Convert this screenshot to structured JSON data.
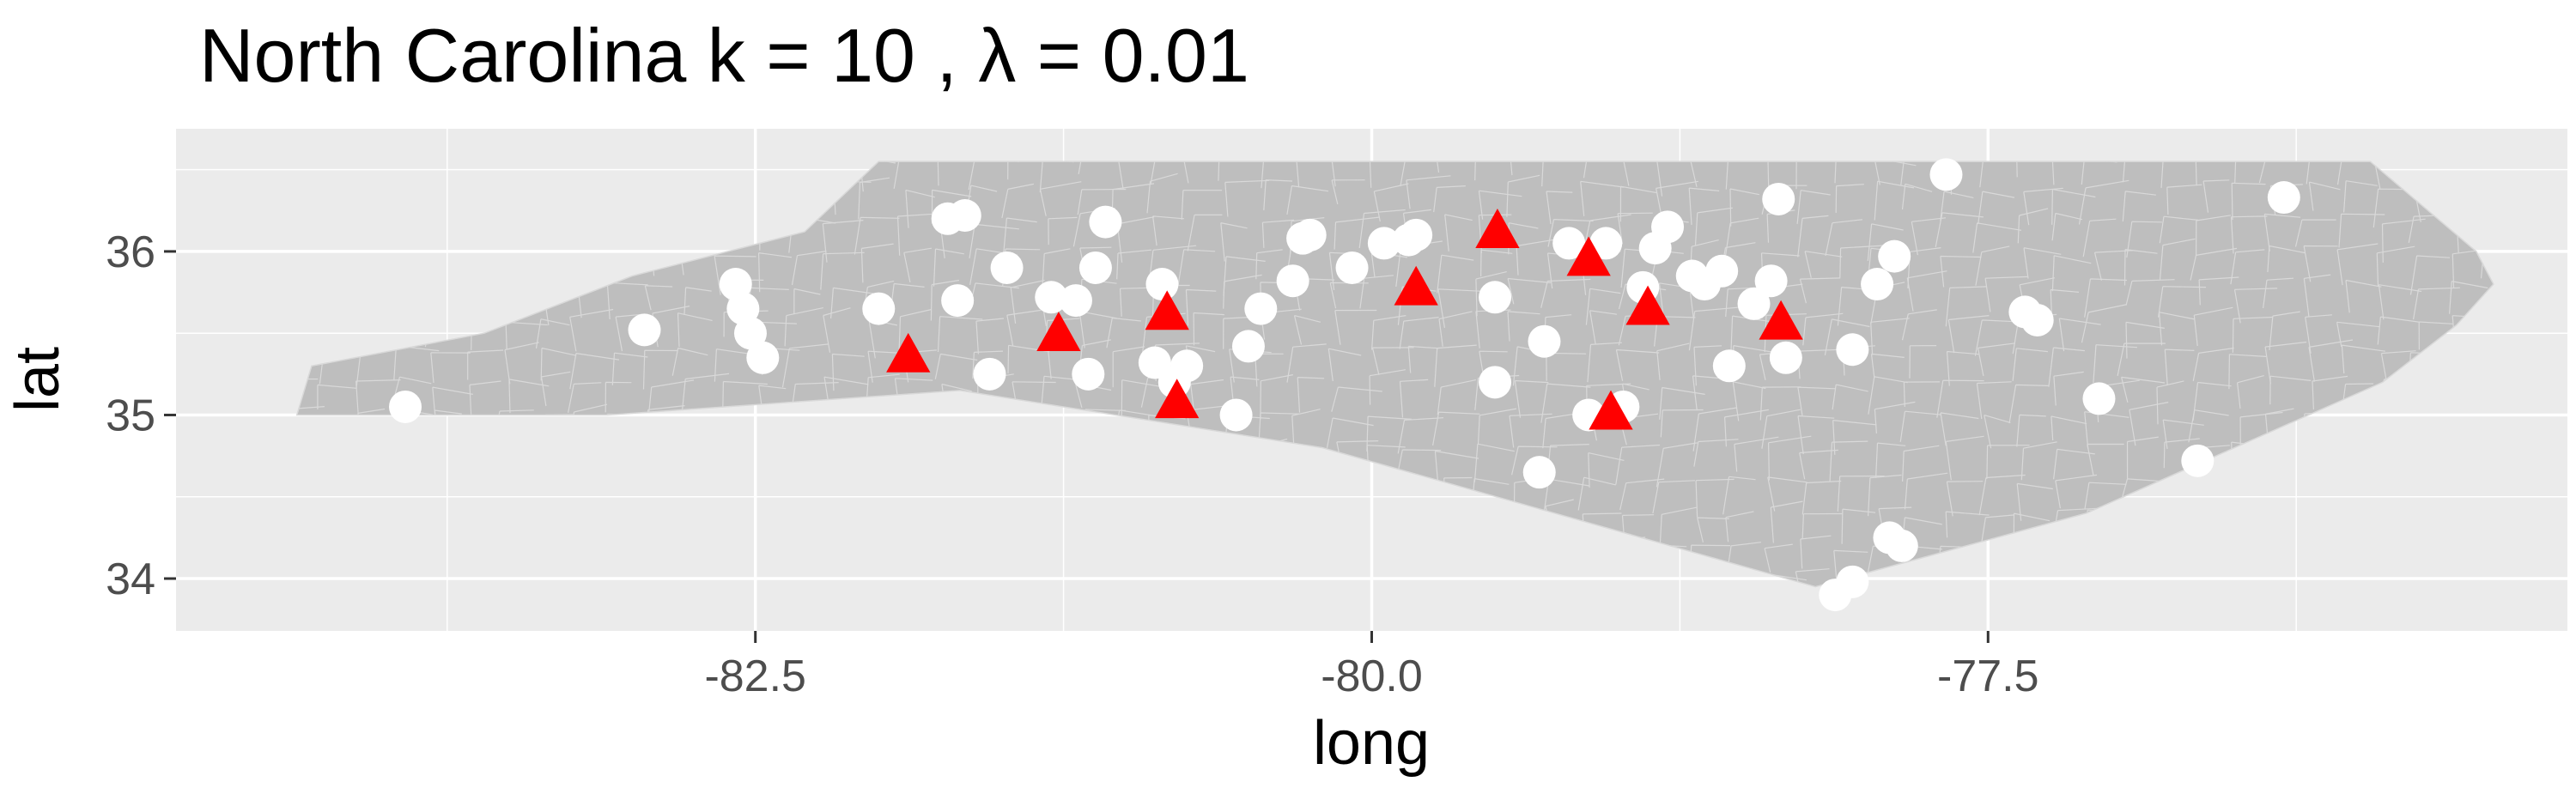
{
  "chart_data": {
    "type": "scatter",
    "title": "North Carolina  k =  10 ,  λ  =  0.01",
    "xlabel": "long",
    "ylabel": "lat",
    "xlim": [
      -84.85,
      -75.15
    ],
    "ylim": [
      33.68,
      36.75
    ],
    "x_ticks": [
      -82.5,
      -80.0,
      -77.5
    ],
    "x_tick_labels": [
      "-82.5",
      "-80.0",
      "-77.5"
    ],
    "y_ticks": [
      34,
      35,
      36
    ],
    "y_tick_labels": [
      "34",
      "35",
      "36"
    ],
    "grid": true,
    "legend": "none",
    "colors": {
      "panel": "#EBEBEB",
      "grid_major": "#FFFFFF",
      "state_fill": "#BEBEBE",
      "county_border": "#D9D9D9",
      "points": "#FFFFFF",
      "centers": "#FF0000"
    },
    "state_outline": {
      "long": [
        -84.32,
        -83.1,
        -81.67,
        -80.2,
        -78.2,
        -77.1,
        -75.9,
        -75.6,
        -75.45,
        -75.52,
        -75.95,
        -76.4,
        -77.2,
        -77.75,
        -78.0,
        -78.4,
        -78.6,
        -79.1,
        -79.7,
        -80.3,
        -80.8,
        -80.95,
        -81.05,
        -82.0,
        -82.3,
        -83.0,
        -83.6,
        -84.3,
        -84.36
      ],
      "lat": [
        35.0,
        35.0,
        35.15,
        34.8,
        33.95,
        34.4,
        35.2,
        35.55,
        35.8,
        36.0,
        36.55,
        36.55,
        36.55,
        36.55,
        36.55,
        36.55,
        36.55,
        36.55,
        36.55,
        36.55,
        36.55,
        36.55,
        36.55,
        36.55,
        36.12,
        35.85,
        35.5,
        35.3,
        35.0
      ]
    },
    "points": {
      "long": [
        -83.92,
        -82.95,
        -82.58,
        -82.55,
        -82.52,
        -82.47,
        -82.0,
        -81.68,
        -81.72,
        -81.55,
        -81.65,
        -81.48,
        -81.3,
        -81.2,
        -81.15,
        -81.12,
        -81.08,
        -80.85,
        -80.88,
        -80.8,
        -80.75,
        -80.55,
        -80.5,
        -80.45,
        -80.32,
        -80.28,
        -80.25,
        -80.08,
        -79.95,
        -79.85,
        -79.82,
        -79.5,
        -79.5,
        -79.3,
        -79.2,
        -79.12,
        -79.05,
        -78.98,
        -78.9,
        -78.85,
        -78.8,
        -78.7,
        -78.65,
        -78.58,
        -78.55,
        -78.45,
        -78.35,
        -78.38,
        -78.32,
        -78.05,
        -77.95,
        -77.88,
        -77.9,
        -77.85,
        -77.35,
        -77.3,
        -77.05,
        -76.65,
        -78.05,
        -78.12,
        -79.32,
        -77.67,
        -76.3
      ],
      "lat": [
        35.05,
        35.52,
        35.8,
        35.65,
        35.5,
        35.35,
        35.65,
        35.7,
        36.2,
        35.25,
        36.22,
        35.9,
        35.72,
        35.7,
        35.25,
        35.9,
        36.18,
        35.8,
        35.32,
        35.2,
        35.3,
        35.0,
        35.42,
        35.65,
        35.82,
        36.08,
        36.1,
        35.9,
        36.05,
        36.07,
        36.1,
        35.72,
        35.2,
        35.45,
        36.05,
        35.0,
        36.05,
        35.05,
        35.78,
        36.02,
        36.15,
        35.85,
        35.8,
        35.88,
        35.3,
        35.68,
        36.32,
        35.82,
        35.35,
        35.4,
        35.8,
        35.97,
        34.25,
        34.2,
        35.63,
        35.58,
        35.1,
        34.72,
        33.98,
        33.9,
        34.65,
        36.47,
        36.33
      ]
    },
    "centers": {
      "long": [
        -81.88,
        -81.27,
        -80.83,
        -80.79,
        -79.82,
        -79.49,
        -79.12,
        -79.03,
        -78.88,
        -78.34
      ],
      "lat": [
        35.36,
        35.49,
        35.62,
        35.08,
        35.77,
        36.12,
        35.95,
        35.01,
        35.65,
        35.56
      ]
    }
  }
}
